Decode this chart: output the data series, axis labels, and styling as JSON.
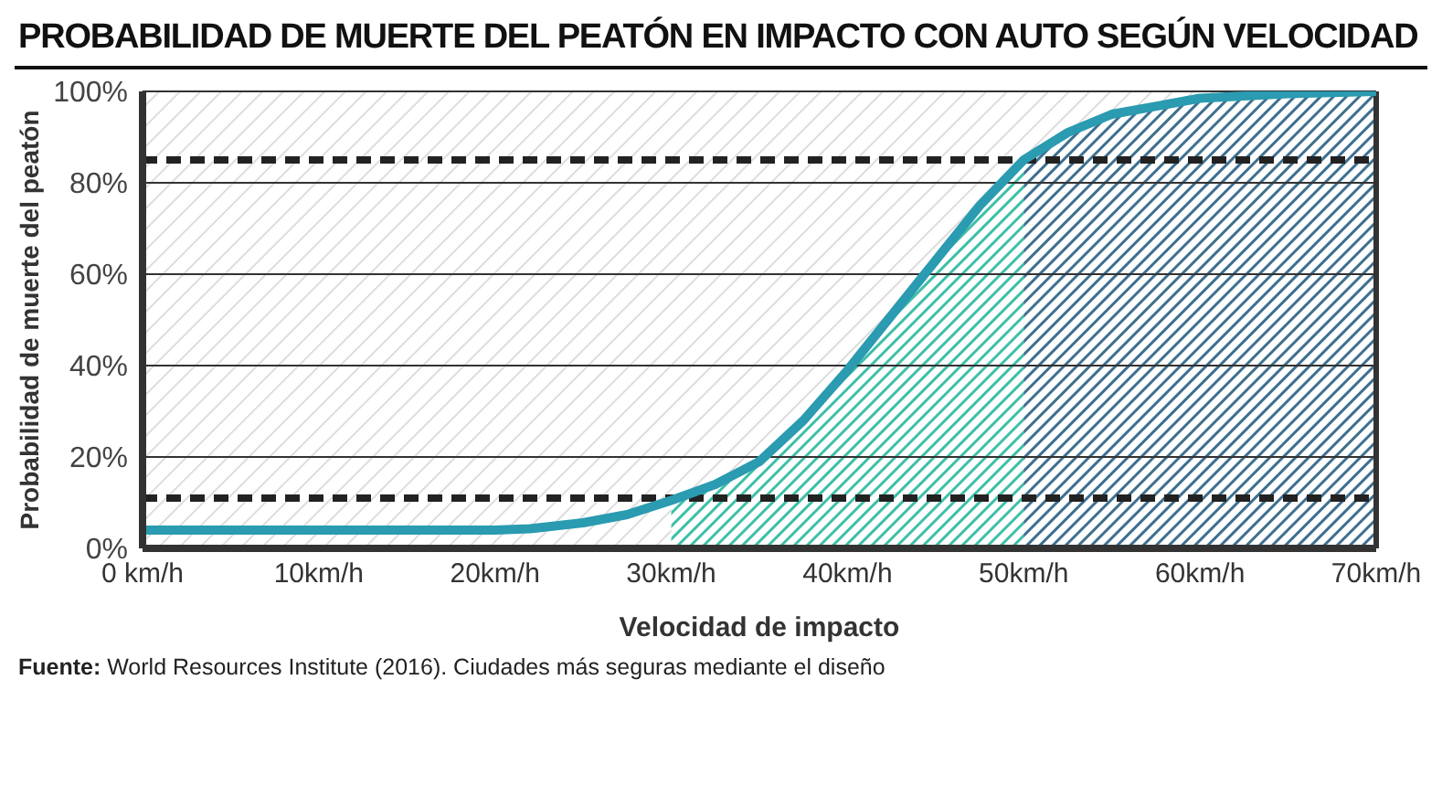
{
  "chart_data": {
    "type": "line",
    "title": "PROBABILIDAD DE MUERTE DEL PEATÓN EN IMPACTO CON AUTO SEGÚN VELOCIDAD",
    "xlabel": "Velocidad de impacto",
    "ylabel": "Probabilidad de muerte del peatón",
    "x": [
      0,
      5,
      10,
      15,
      20,
      22,
      25,
      27.5,
      30,
      32.5,
      35,
      37.5,
      40,
      42.5,
      45,
      47.5,
      50,
      52.5,
      55,
      60,
      65,
      70
    ],
    "series": [
      {
        "color": "#2a9bb0",
        "values": [
          4,
          4,
          4,
          4,
          4,
          4.3,
          5.6,
          7.4,
          10.5,
          14,
          19,
          28,
          39,
          51,
          63,
          75,
          85,
          91,
          95,
          98.5,
          99.5,
          100
        ]
      }
    ],
    "xlim": [
      0,
      70
    ],
    "xticks": [
      {
        "value": 0,
        "label": "0 km/h"
      },
      {
        "value": 10,
        "label": "10km/h"
      },
      {
        "value": 20,
        "label": "20km/h"
      },
      {
        "value": 30,
        "label": "30km/h"
      },
      {
        "value": 40,
        "label": "40km/h"
      },
      {
        "value": 50,
        "label": "50km/h"
      },
      {
        "value": 60,
        "label": "60km/h"
      },
      {
        "value": 70,
        "label": "70km/h"
      }
    ],
    "ylim": [
      0,
      100
    ],
    "yticks": [
      {
        "value": 0,
        "label": "0%"
      },
      {
        "value": 20,
        "label": "20%"
      },
      {
        "value": 40,
        "label": "40%"
      },
      {
        "value": 60,
        "label": "60%"
      },
      {
        "value": 80,
        "label": "80%"
      },
      {
        "value": 100,
        "label": "100%"
      }
    ],
    "ref_lines": [
      {
        "axis": "y",
        "value": 85,
        "color": "#222222",
        "line_style": "dashed"
      },
      {
        "axis": "y",
        "value": 11,
        "color": "#222222",
        "line_style": "dashed"
      }
    ],
    "bands": [
      {
        "axis": "x",
        "from": 30,
        "to": 50,
        "color": "#3fbfa8"
      },
      {
        "axis": "x",
        "from": 50,
        "to": 70,
        "color": "#3e6f8f"
      }
    ],
    "grid": "y",
    "marker": "none",
    "line_style": "solid",
    "legend": false,
    "annotations": [
      "Fuente: World Resources Institute (2016). Ciudades más seguras mediante el diseño"
    ]
  }
}
